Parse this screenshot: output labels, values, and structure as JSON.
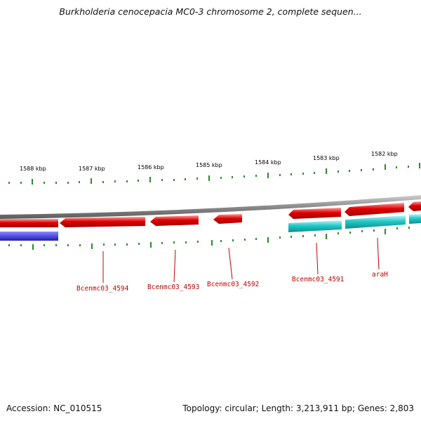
{
  "title": "Burkholderia cenocepacia MC0-3 chromosome 2, complete sequen...",
  "scale_labels": [
    "1588 kbp",
    "1587 kbp",
    "1586 kbp",
    "1585 kbp",
    "1584 kbp",
    "1583 kbp",
    "1582 kbp"
  ],
  "gene_labels": [
    "Bcenmc03_4594",
    "Bcenmc03_4593",
    "Bcenmc03_4592",
    "Bcenmc03_4591",
    "araH"
  ],
  "footer": {
    "accession": "Accession: NC_010515",
    "summary": "Topology: circular; Length: 3,213,911 bp; Genes: 2,803"
  },
  "colors": {
    "cds": "#e00000",
    "gene_highlight": "#ff7070",
    "rna_cyan": "#20c8c8",
    "blue_feature": "#1a1aa0",
    "backbone": "#8a8a8a",
    "tick": "#2a8a2a",
    "label": "#c00000"
  }
}
